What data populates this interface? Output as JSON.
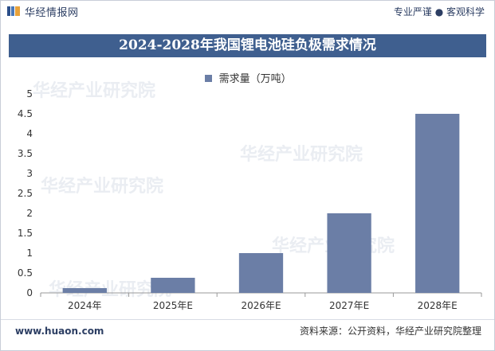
{
  "header": {
    "brand": "华经情报网",
    "slogan": "专业严谨 ● 客观科学",
    "brand_icon": "huajing-logo-icon"
  },
  "watermark_text": "华经产业研究院",
  "watermark_url": "www.huaon.com",
  "colors": {
    "title_band": "#3f5f8f",
    "bar": "#6b7ea6",
    "brand_text": "#2c3e63"
  },
  "footer": {
    "website": "www.huaon.com",
    "source": "资料来源：公开资料，华经产业研究院整理"
  },
  "chart_data": {
    "type": "bar",
    "title": "2024-2028年我国锂电池硅负极需求情况",
    "categories": [
      "2024年",
      "2025年E",
      "2026年E",
      "2027年E",
      "2028年E"
    ],
    "series": [
      {
        "name": "需求量（万吨）",
        "values": [
          0.12,
          0.38,
          1.0,
          2.0,
          4.5
        ]
      }
    ],
    "ylim": [
      0,
      5
    ],
    "yticks": [
      0,
      0.5,
      1,
      1.5,
      2,
      2.5,
      3,
      3.5,
      4,
      4.5,
      5
    ],
    "ytick_labels": [
      "0",
      "0.5",
      "1",
      "1.5",
      "2",
      "2.5",
      "3",
      "3.5",
      "4",
      "4.5",
      "5"
    ],
    "xlabel": "",
    "ylabel": "",
    "grid": false,
    "legend_position": "top-center"
  }
}
